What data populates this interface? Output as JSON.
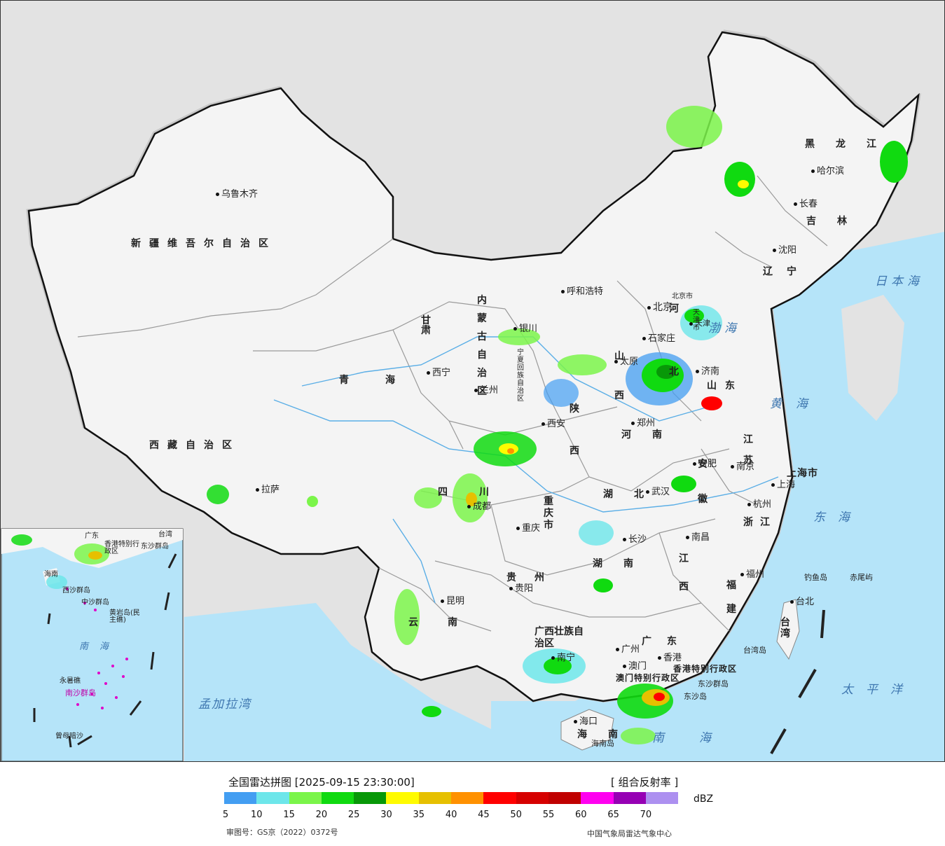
{
  "map": {
    "colors": {
      "background": "#e3e3e3",
      "sea": "#b5e4f9",
      "land": "#f4f4f4",
      "border": "#111111",
      "province_border": "#9a9a9a",
      "rivers": "#5aaee6"
    },
    "provinces": {
      "xinjiang": "新疆维吾尔自治区",
      "xizang": "西藏自治区",
      "qinghai": "青海",
      "gansu": "甘肃",
      "neimenggu": "内蒙古自治区",
      "heilongjiang": "黑龙江",
      "jilin": "吉林",
      "liaoning": "辽宁",
      "hebei": "河北",
      "shanxi": "山西",
      "shandong": "山东",
      "henan": "河南",
      "shaanxi": "陕西",
      "ningxia": "宁夏回族自治区",
      "sichuan": "四川",
      "chongqing": "重庆市",
      "hubei": "湖北",
      "hunan": "湖南",
      "jiangxi": "江西",
      "anhui": "安徽",
      "jiangsu": "江苏",
      "zhejiang": "浙江",
      "fujian": "福建",
      "guizhou": "贵州",
      "yunnan": "云南",
      "guangxi": "广西壮族自治区",
      "guangdong": "广东",
      "hainan": "海南",
      "shanghai": "上海市",
      "taiwan": "台湾",
      "hongkong": "香港特别行政区",
      "macau": "澳门特别行政区",
      "tianjin": "天津市",
      "beijing": "北京市"
    },
    "cities": {
      "urumqi": "乌鲁木齐",
      "lhasa": "拉萨",
      "xining": "西宁",
      "lanzhou": "兰州",
      "yinchuan": "银川",
      "hohhot": "呼和浩特",
      "beijing": "北京",
      "tianjin": "天津",
      "shijiazhuang": "石家庄",
      "taiyuan": "太原",
      "jinan": "济南",
      "zhengzhou": "郑州",
      "xian": "西安",
      "chengdu": "成都",
      "chongqing": "重庆",
      "wuhan": "武汉",
      "changsha": "长沙",
      "nanchang": "南昌",
      "hefei": "合肥",
      "nanjing": "南京",
      "shanghai": "上海",
      "hangzhou": "杭州",
      "fuzhou": "福州",
      "taipei": "台北",
      "guiyang": "贵阳",
      "kunming": "昆明",
      "nanning": "南宁",
      "guangzhou": "广州",
      "hongkong": "香港",
      "macau": "澳门",
      "haikou": "海口",
      "harbin": "哈尔滨",
      "changchun": "长春",
      "shenyang": "沈阳"
    },
    "seas": {
      "bohai": "渤海",
      "huanghai": "黄海",
      "donghai": "东海",
      "nanhai": "南海",
      "japan_sea": "日本海",
      "pacific": "太平洋",
      "bengal": "孟加拉湾"
    },
    "islands": {
      "diaoyu": "钓鱼岛",
      "chiwei": "赤尾屿",
      "dongsha": "东沙群岛",
      "dongsha_dao": "东沙岛",
      "hainan_dao": "海南岛",
      "taiwan_dao": "台湾岛"
    },
    "inset": {
      "dongsha": "东沙群岛",
      "xisha": "西沙群岛",
      "zhongsha": "中沙群岛",
      "huangyan": "黄岩岛(民主礁)",
      "nansha": "南沙群岛",
      "yongshu": "永暑礁",
      "zengmu": "曾母暗沙",
      "hainan": "海南",
      "nanhai": "南海",
      "hk": "香港特别行政区",
      "guangdong": "广东",
      "taiwan": "台湾"
    }
  },
  "legend": {
    "title": "全国雷达拼图 [2025-09-15 23:30:00]",
    "product": "[ 组合反射率 ]",
    "unit": "dBZ",
    "ticks": [
      "5",
      "10",
      "15",
      "20",
      "25",
      "30",
      "35",
      "40",
      "45",
      "50",
      "55",
      "60",
      "65",
      "70"
    ],
    "colors": [
      "#439ef2",
      "#6de6ea",
      "#7bf54a",
      "#10da10",
      "#089808",
      "#fffb00",
      "#e6c000",
      "#ff9100",
      "#ff0000",
      "#d60000",
      "#c00000",
      "#ff00f0",
      "#9600b4",
      "#ad90f0"
    ],
    "approval": "审图号：GS京（2022）0372号",
    "source": "中国气象局雷达气象中心"
  }
}
